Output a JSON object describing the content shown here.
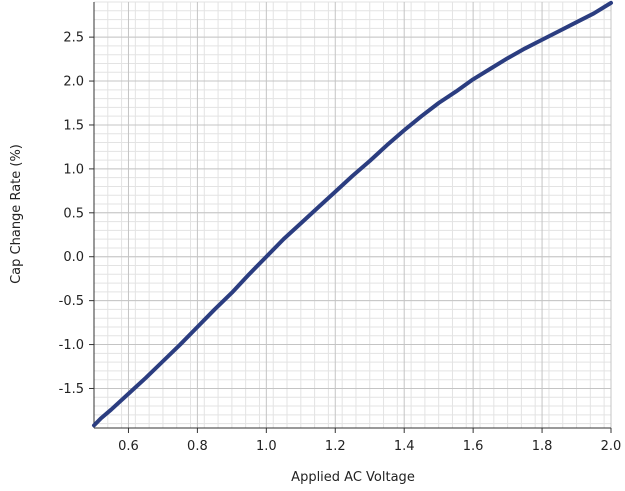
{
  "chart_data": {
    "type": "line",
    "title": "",
    "xlabel": "Applied AC Voltage",
    "ylabel": "Cap Change Rate (%)",
    "xlim": [
      0.5,
      2.0
    ],
    "ylim": [
      -1.95,
      2.9
    ],
    "x_ticks": [
      0.6,
      0.8,
      1.0,
      1.2,
      1.4,
      1.6,
      1.8,
      2.0
    ],
    "x_tick_labels": [
      "0.6",
      "0.8",
      "1.0",
      "1.2",
      "1.4",
      "1.6",
      "1.8",
      "2.0"
    ],
    "y_ticks": [
      -1.5,
      -1.0,
      -0.5,
      0.0,
      0.5,
      1.0,
      1.5,
      2.0,
      2.5
    ],
    "y_tick_labels": [
      "-1.5",
      "-1.0",
      "-0.5",
      "0.0",
      "0.5",
      "1.0",
      "1.5",
      "2.0",
      "2.5"
    ],
    "grid": true,
    "line_color": "#2b3d80",
    "series": [
      {
        "x": [
          0.5,
          0.52,
          0.55,
          0.6,
          0.65,
          0.7,
          0.75,
          0.8,
          0.85,
          0.9,
          0.95,
          1.0,
          1.05,
          1.1,
          1.15,
          1.2,
          1.25,
          1.3,
          1.35,
          1.4,
          1.45,
          1.5,
          1.55,
          1.6,
          1.65,
          1.7,
          1.75,
          1.8,
          1.85,
          1.9,
          1.95,
          2.0
        ],
        "y": [
          -1.92,
          -1.84,
          -1.74,
          -1.56,
          -1.38,
          -1.19,
          -1.0,
          -0.8,
          -0.6,
          -0.41,
          -0.2,
          0.0,
          0.2,
          0.38,
          0.56,
          0.74,
          0.92,
          1.09,
          1.27,
          1.44,
          1.6,
          1.75,
          1.88,
          2.02,
          2.14,
          2.26,
          2.37,
          2.47,
          2.57,
          2.67,
          2.77,
          2.89
        ]
      }
    ]
  }
}
